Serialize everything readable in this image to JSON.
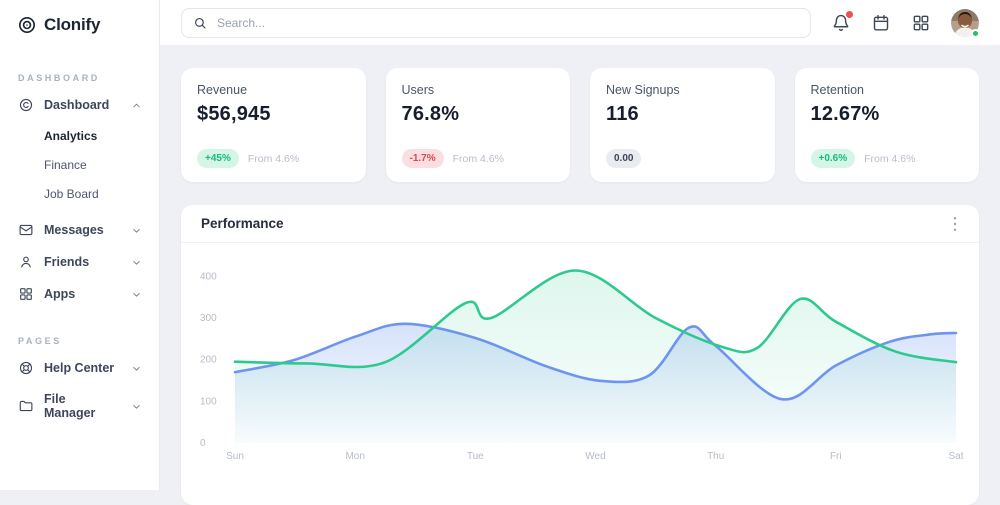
{
  "brand": {
    "name": "Clonify"
  },
  "topbar": {
    "search_placeholder": "Search...",
    "icons": [
      {
        "name": "bell-icon",
        "has_badge": true
      },
      {
        "name": "calendar-icon",
        "has_badge": false
      },
      {
        "name": "apps-icon",
        "has_badge": false
      }
    ],
    "avatar": {
      "status": "online"
    }
  },
  "sidebar": {
    "sections": [
      {
        "label": "DASHBOARD",
        "items": [
          {
            "label": "Dashboard",
            "icon": "dashboard-icon",
            "chevron": "up",
            "expanded": true,
            "children": [
              {
                "label": "Analytics",
                "active": true
              },
              {
                "label": "Finance",
                "active": false
              },
              {
                "label": "Job Board",
                "active": false
              }
            ]
          },
          {
            "label": "Messages",
            "icon": "mail-icon",
            "chevron": "down"
          },
          {
            "label": "Friends",
            "icon": "user-icon",
            "chevron": "down"
          },
          {
            "label": "Apps",
            "icon": "apps-icon",
            "chevron": "down"
          }
        ]
      },
      {
        "label": "PAGES",
        "items": [
          {
            "label": "Help Center",
            "icon": "lifebuoy-icon",
            "chevron": "down"
          },
          {
            "label": "File Manager",
            "icon": "folder-icon",
            "chevron": "down"
          }
        ]
      }
    ]
  },
  "stats": [
    {
      "label": "Revenue",
      "value": "$56,945",
      "badge": "+45%",
      "badge_type": "positive",
      "note": "From 4.6%"
    },
    {
      "label": "Users",
      "value": "76.8%",
      "badge": "-1.7%",
      "badge_type": "negative",
      "note": "From 4.6%"
    },
    {
      "label": "New Signups",
      "value": "116",
      "badge": "0.00",
      "badge_type": "neutral",
      "note": ""
    },
    {
      "label": "Retention",
      "value": "12.67%",
      "badge": "+0.6%",
      "badge_type": "positive",
      "note": "From 4.6%"
    }
  ],
  "chart_data": {
    "type": "area",
    "title": "Performance",
    "categories": [
      "Sun",
      "Mon",
      "Tue",
      "Wed",
      "Thu",
      "Fri",
      "Sat"
    ],
    "yticks": [
      0,
      100,
      200,
      300,
      400
    ],
    "ylim": [
      0,
      450
    ],
    "grid": false,
    "legend": "none",
    "series": [
      {
        "name": "series-green",
        "color": "#2dc98e",
        "fill_opacity_top": 0.16,
        "points": [
          [
            0,
            195
          ],
          [
            0.6,
            191
          ],
          [
            1.25,
            194
          ],
          [
            1.92,
            336
          ],
          [
            2.13,
            300
          ],
          [
            2.83,
            414
          ],
          [
            3.5,
            300
          ],
          [
            4.05,
            231
          ],
          [
            4.35,
            229
          ],
          [
            4.7,
            345
          ],
          [
            5.0,
            291
          ],
          [
            5.5,
            219
          ],
          [
            6,
            194
          ]
        ]
      },
      {
        "name": "series-blue",
        "color": "#6d95ef",
        "fill_opacity_top": 0.4,
        "points": [
          [
            0,
            170
          ],
          [
            0.5,
            200
          ],
          [
            1,
            255
          ],
          [
            1.42,
            286
          ],
          [
            2,
            252
          ],
          [
            2.6,
            183
          ],
          [
            3.05,
            149
          ],
          [
            3.45,
            163
          ],
          [
            3.78,
            277
          ],
          [
            4.0,
            233
          ],
          [
            4.55,
            105
          ],
          [
            5.0,
            186
          ],
          [
            5.45,
            243
          ],
          [
            5.8,
            261
          ],
          [
            6,
            264
          ]
        ]
      }
    ]
  }
}
